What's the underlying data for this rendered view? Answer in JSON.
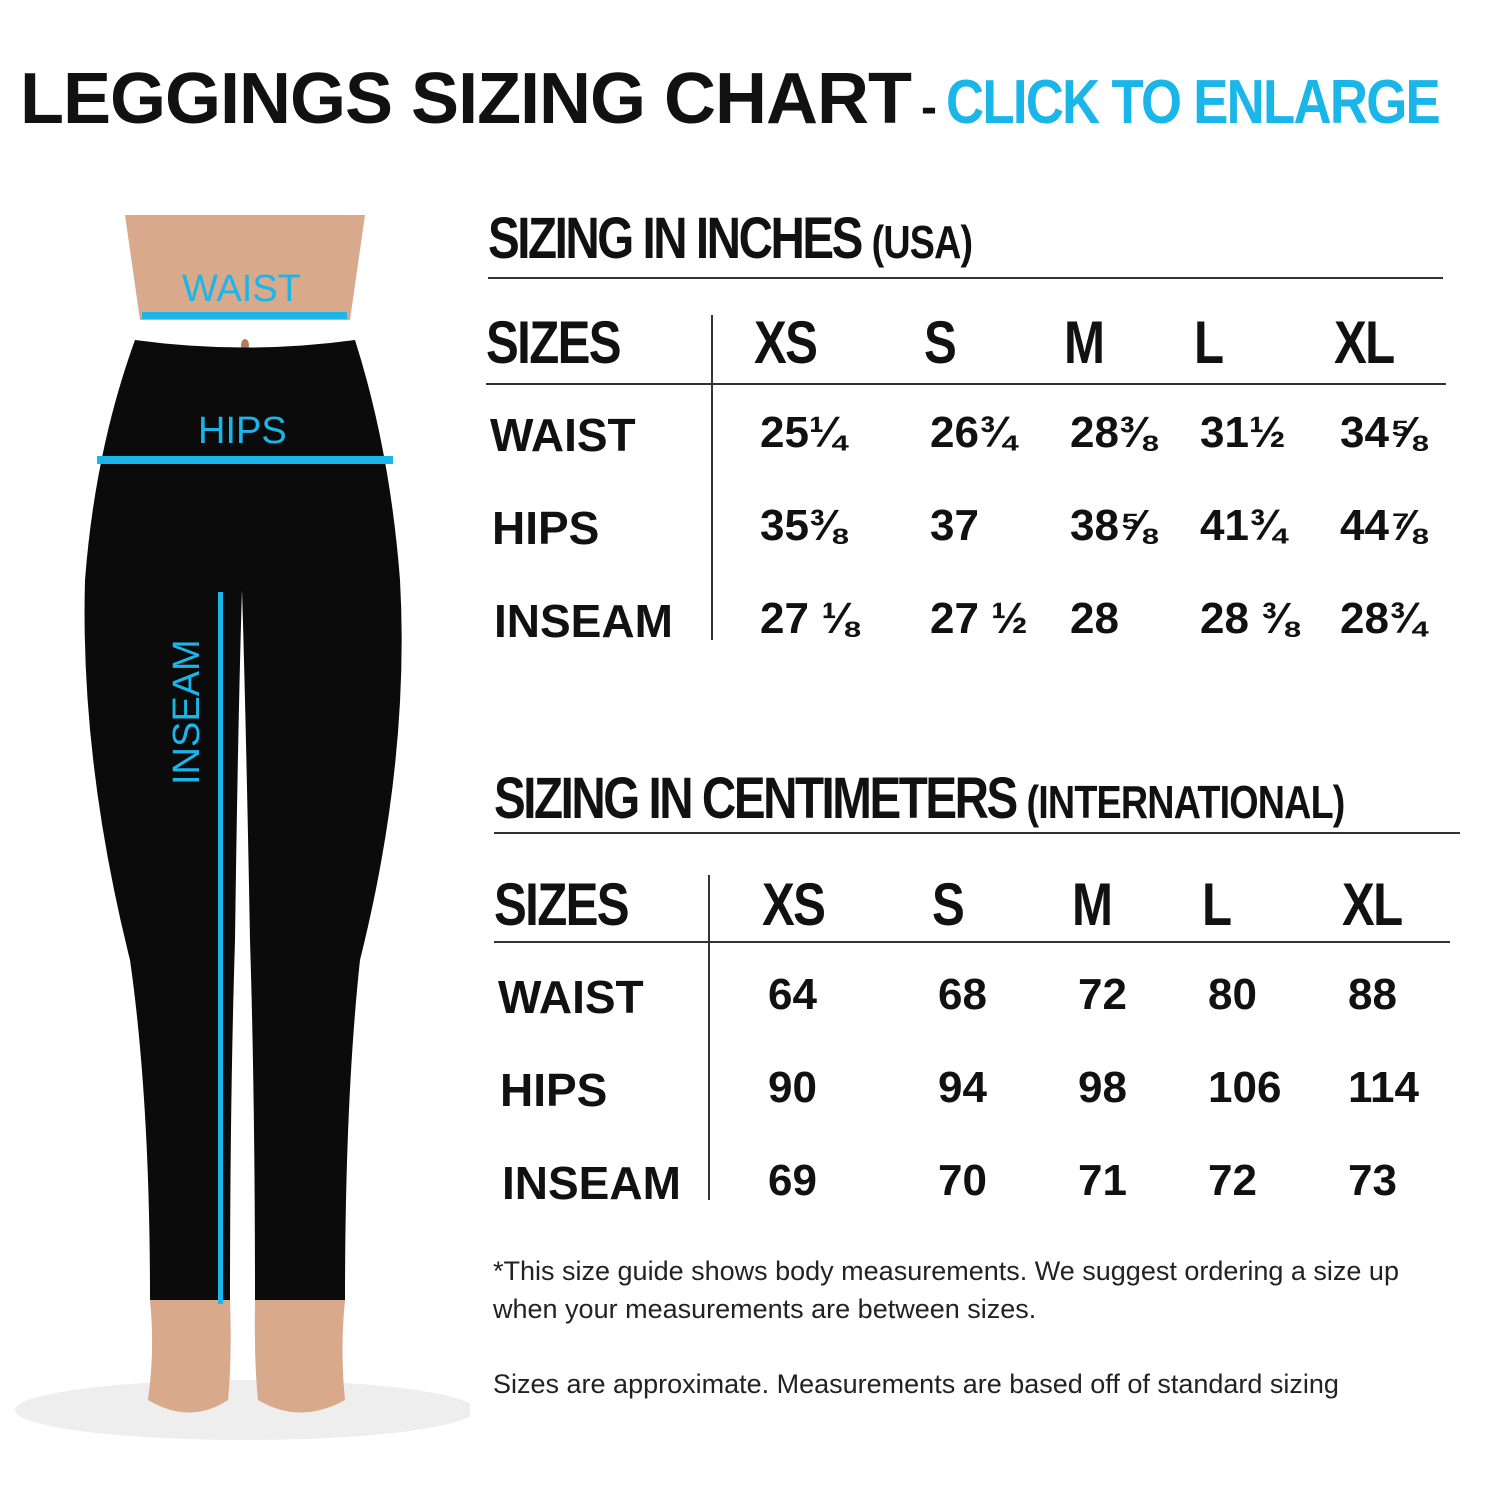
{
  "title": {
    "main": "LEGGINGS SIZING CHART",
    "separator": "-",
    "cta": "CLICK TO ENLARGE"
  },
  "colors": {
    "accent": "#1ab6ea",
    "text": "#111111",
    "leggings": "#0b0b0b",
    "skin": "#d9a98c"
  },
  "figure": {
    "labels": {
      "waist": "WAIST",
      "hips": "HIPS",
      "inseam": "INSEAM"
    }
  },
  "inches": {
    "title": "SIZING IN INCHES",
    "subtitle": "(USA)",
    "header": "SIZES",
    "sizes": [
      "XS",
      "S",
      "M",
      "L",
      "XL"
    ],
    "rows": [
      {
        "label": "WAIST",
        "values": [
          "25¼",
          "26¾",
          "28⅜",
          "31½",
          "34⅝"
        ]
      },
      {
        "label": "HIPS",
        "values": [
          "35⅜",
          "37",
          "38⅝",
          "41¾",
          "44⅞"
        ]
      },
      {
        "label": "INSEAM",
        "values": [
          "27 ⅛",
          "27 ½",
          "28",
          "28 ⅜",
          "28¾"
        ]
      }
    ]
  },
  "cm": {
    "title": "SIZING IN CENTIMETERS",
    "subtitle": "(INTERNATIONAL)",
    "header": "SIZES",
    "sizes": [
      "XS",
      "S",
      "M",
      "L",
      "XL"
    ],
    "rows": [
      {
        "label": "WAIST",
        "values": [
          "64",
          "68",
          "72",
          "80",
          "88"
        ]
      },
      {
        "label": "HIPS",
        "values": [
          "90",
          "94",
          "98",
          "106",
          "114"
        ]
      },
      {
        "label": "INSEAM",
        "values": [
          "69",
          "70",
          "71",
          "72",
          "73"
        ]
      }
    ]
  },
  "notes": {
    "disclaimer": "*This size guide shows body measurements. We suggest ordering a size up when your measurements are between sizes.",
    "approx": "Sizes are approximate. Measurements are based off of standard sizing"
  }
}
